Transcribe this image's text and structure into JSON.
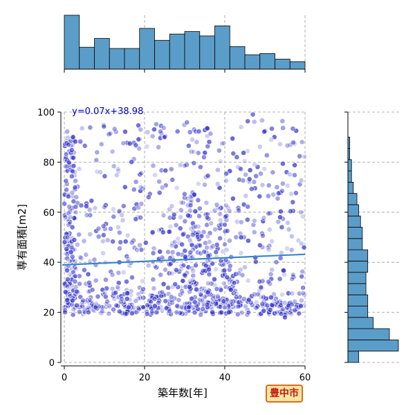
{
  "chart_data": {
    "type": "scatter",
    "title": "",
    "xlabel": "築年数[年]",
    "ylabel": "専有面積[m2]",
    "xlim": [
      0,
      60
    ],
    "ylim": [
      0,
      100
    ],
    "xticks": [
      0,
      20,
      40,
      60
    ],
    "yticks": [
      0,
      20,
      40,
      60,
      80,
      100
    ],
    "grid": true,
    "regression": {
      "label": "y=0.07x+38.98",
      "slope": 0.07,
      "intercept": 38.98,
      "color": "#3a86c8"
    },
    "point_color": "#2c2cc8",
    "hist_color": "#5b9dc9",
    "sample_points": [
      [
        1,
        87
      ],
      [
        2,
        54
      ],
      [
        4,
        42
      ],
      [
        7,
        29
      ],
      [
        9,
        76
      ],
      [
        12,
        35
      ],
      [
        14,
        48
      ],
      [
        16,
        22
      ],
      [
        19,
        93
      ],
      [
        21,
        66
      ],
      [
        23,
        20
      ],
      [
        25,
        90
      ],
      [
        27,
        44
      ],
      [
        29,
        58
      ],
      [
        31,
        22
      ],
      [
        33,
        88
      ],
      [
        35,
        71
      ],
      [
        37,
        24
      ],
      [
        38,
        63
      ],
      [
        40,
        55
      ],
      [
        41,
        20
      ],
      [
        43,
        82
      ],
      [
        45,
        38
      ],
      [
        47,
        99
      ],
      [
        49,
        30
      ],
      [
        51,
        45
      ],
      [
        53,
        70
      ],
      [
        55,
        18
      ],
      [
        57,
        35
      ],
      [
        59,
        60
      ],
      [
        6,
        20
      ],
      [
        18,
        20
      ],
      [
        28,
        20
      ],
      [
        34,
        19
      ],
      [
        24,
        35
      ],
      [
        10,
        62
      ],
      [
        3,
        66
      ],
      [
        46,
        25
      ],
      [
        30,
        35
      ],
      [
        22,
        52
      ]
    ],
    "x_hist": {
      "bin_width": 3.75,
      "counts": [
        86,
        35,
        49,
        33,
        33,
        65,
        46,
        56,
        60,
        53,
        69,
        36,
        23,
        25,
        16,
        12
      ]
    },
    "y_hist": {
      "bin_width": 4.5,
      "counts": [
        6,
        28,
        23,
        14,
        11,
        11,
        10,
        10,
        11,
        11,
        8,
        8,
        7,
        6,
        5,
        3,
        2,
        2,
        1,
        1,
        0,
        0
      ]
    }
  },
  "city_badge": "豊中市"
}
